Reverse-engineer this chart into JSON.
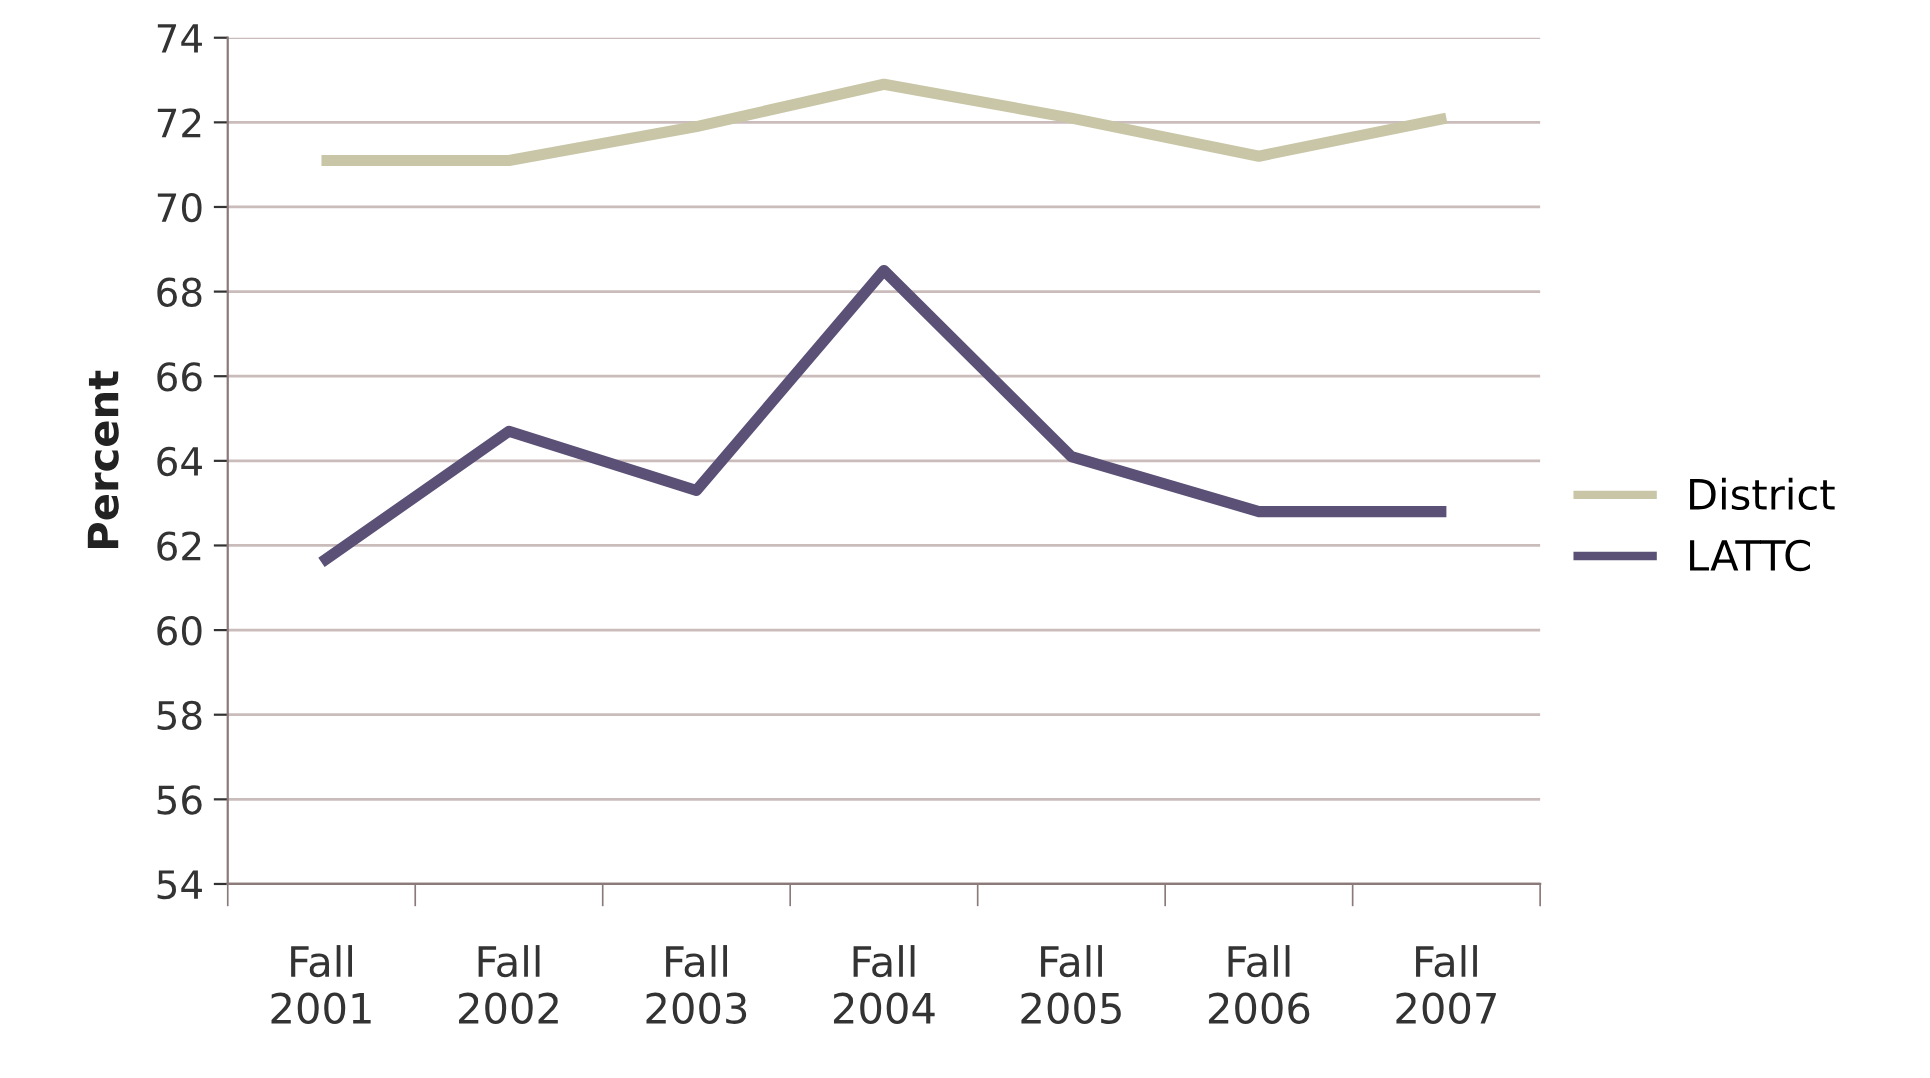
{
  "chart_data": {
    "type": "line",
    "ylabel": "Percent",
    "categories": [
      "Fall\n2001",
      "Fall\n2002",
      "Fall\n2003",
      "Fall\n2004",
      "Fall\n2005",
      "Fall\n2006",
      "Fall\n2007"
    ],
    "series": [
      {
        "name": "District",
        "color": "#c8c6a6",
        "values": [
          71.1,
          71.1,
          71.9,
          72.9,
          72.1,
          71.2,
          72.1
        ]
      },
      {
        "name": "LATTC",
        "color": "#5b5075",
        "values": [
          61.6,
          64.7,
          63.3,
          68.5,
          64.1,
          62.8,
          62.8
        ]
      }
    ],
    "ylim": [
      54,
      74
    ],
    "yticks": [
      54,
      56,
      58,
      60,
      62,
      64,
      66,
      68,
      70,
      72,
      74
    ],
    "grid": "y",
    "legend": "right",
    "marker": "none",
    "line_style": "solid"
  }
}
